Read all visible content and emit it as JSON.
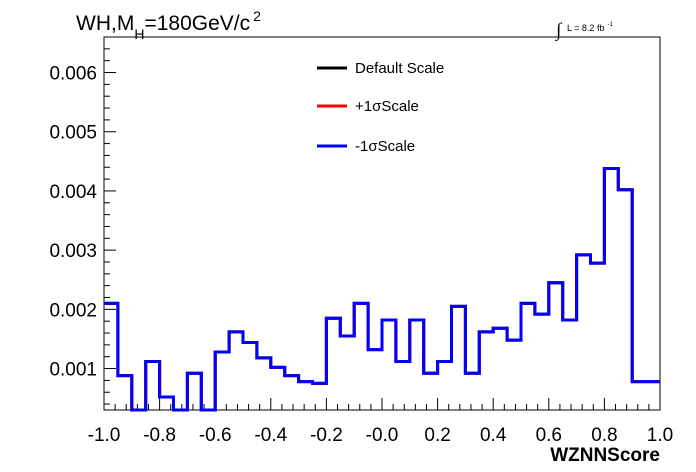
{
  "chart_data": {
    "type": "histogram-step",
    "title_parts": {
      "main": "WH,M",
      "sub": "H",
      "rest": "=180GeV/c",
      "sup": "2"
    },
    "lumi_parts": {
      "integral": "∫",
      "text": "L = 8.2 fb",
      "sup": "-1"
    },
    "xlabel": "WZNNScore",
    "ylabel": "",
    "xlim": [
      -1.0,
      1.0
    ],
    "ylim": [
      0.0003,
      0.0066
    ],
    "x_ticks": [
      {
        "value": -1.0,
        "label": "-1.0"
      },
      {
        "value": -0.8,
        "label": "-0.8"
      },
      {
        "value": -0.6,
        "label": "-0.6"
      },
      {
        "value": -0.4,
        "label": "-0.4"
      },
      {
        "value": -0.2,
        "label": "-0.2"
      },
      {
        "value": 0.0,
        "label": "-0.0"
      },
      {
        "value": 0.2,
        "label": "0.2"
      },
      {
        "value": 0.4,
        "label": "0.4"
      },
      {
        "value": 0.6,
        "label": "0.6"
      },
      {
        "value": 0.8,
        "label": "0.8"
      },
      {
        "value": 1.0,
        "label": "1.0"
      }
    ],
    "y_ticks": [
      {
        "value": 0.001,
        "label": "0.001"
      },
      {
        "value": 0.002,
        "label": "0.002"
      },
      {
        "value": 0.003,
        "label": "0.003"
      },
      {
        "value": 0.004,
        "label": "0.004"
      },
      {
        "value": 0.005,
        "label": "0.005"
      },
      {
        "value": 0.006,
        "label": "0.006"
      }
    ],
    "bin_edges": [
      -1.0,
      -0.95,
      -0.9,
      -0.85,
      -0.8,
      -0.75,
      -0.7,
      -0.65,
      -0.6,
      -0.55,
      -0.5,
      -0.45,
      -0.4,
      -0.35,
      -0.3,
      -0.25,
      -0.2,
      -0.15,
      -0.1,
      -0.05,
      0.0,
      0.05,
      0.1,
      0.15,
      0.2,
      0.25,
      0.3,
      0.35,
      0.4,
      0.45,
      0.5,
      0.55,
      0.6,
      0.65,
      0.7,
      0.75,
      0.8,
      0.85,
      0.9,
      0.95,
      1.0
    ],
    "series": [
      {
        "name": "Default Scale",
        "color": "#000000",
        "values": [
          0.0021,
          0.00088,
          0.0003,
          0.00112,
          0.00052,
          0.0003,
          0.00092,
          0.0003,
          0.00128,
          0.00162,
          0.00144,
          0.00118,
          0.00102,
          0.00088,
          0.00078,
          0.00075,
          0.00185,
          0.00155,
          0.0021,
          0.00132,
          0.00182,
          0.00112,
          0.00182,
          0.00092,
          0.00112,
          0.00205,
          0.00092,
          0.00162,
          0.00168,
          0.00148,
          0.0021,
          0.00192,
          0.00245,
          0.00182,
          0.00292,
          0.00278,
          0.00438,
          0.00402,
          0.00078,
          0.00078
        ]
      },
      {
        "name": "+1σScale",
        "color": "#ff0000",
        "values": [
          0.0021,
          0.00088,
          0.0003,
          0.00112,
          0.00052,
          0.0003,
          0.00092,
          0.0003,
          0.00128,
          0.00162,
          0.00144,
          0.00118,
          0.00102,
          0.00088,
          0.00078,
          0.00075,
          0.00185,
          0.00155,
          0.0021,
          0.00132,
          0.00182,
          0.00112,
          0.00182,
          0.00092,
          0.00112,
          0.00205,
          0.00092,
          0.00162,
          0.00168,
          0.00148,
          0.0021,
          0.00192,
          0.00245,
          0.00182,
          0.00292,
          0.00278,
          0.00438,
          0.00402,
          0.00078,
          0.00078
        ]
      },
      {
        "name": "-1σScale",
        "color": "#0000ff",
        "values": [
          0.0021,
          0.00088,
          0.0003,
          0.00112,
          0.00052,
          0.0003,
          0.00092,
          0.0003,
          0.00128,
          0.00162,
          0.00144,
          0.00118,
          0.00102,
          0.00088,
          0.00078,
          0.00075,
          0.00185,
          0.00155,
          0.0021,
          0.00132,
          0.00182,
          0.00112,
          0.00182,
          0.00092,
          0.00112,
          0.00205,
          0.00092,
          0.00162,
          0.00168,
          0.00148,
          0.0021,
          0.00192,
          0.00245,
          0.00182,
          0.00292,
          0.00278,
          0.00438,
          0.00402,
          0.00078,
          0.00078
        ]
      }
    ],
    "legend_placement": "top-center",
    "grid": false
  }
}
